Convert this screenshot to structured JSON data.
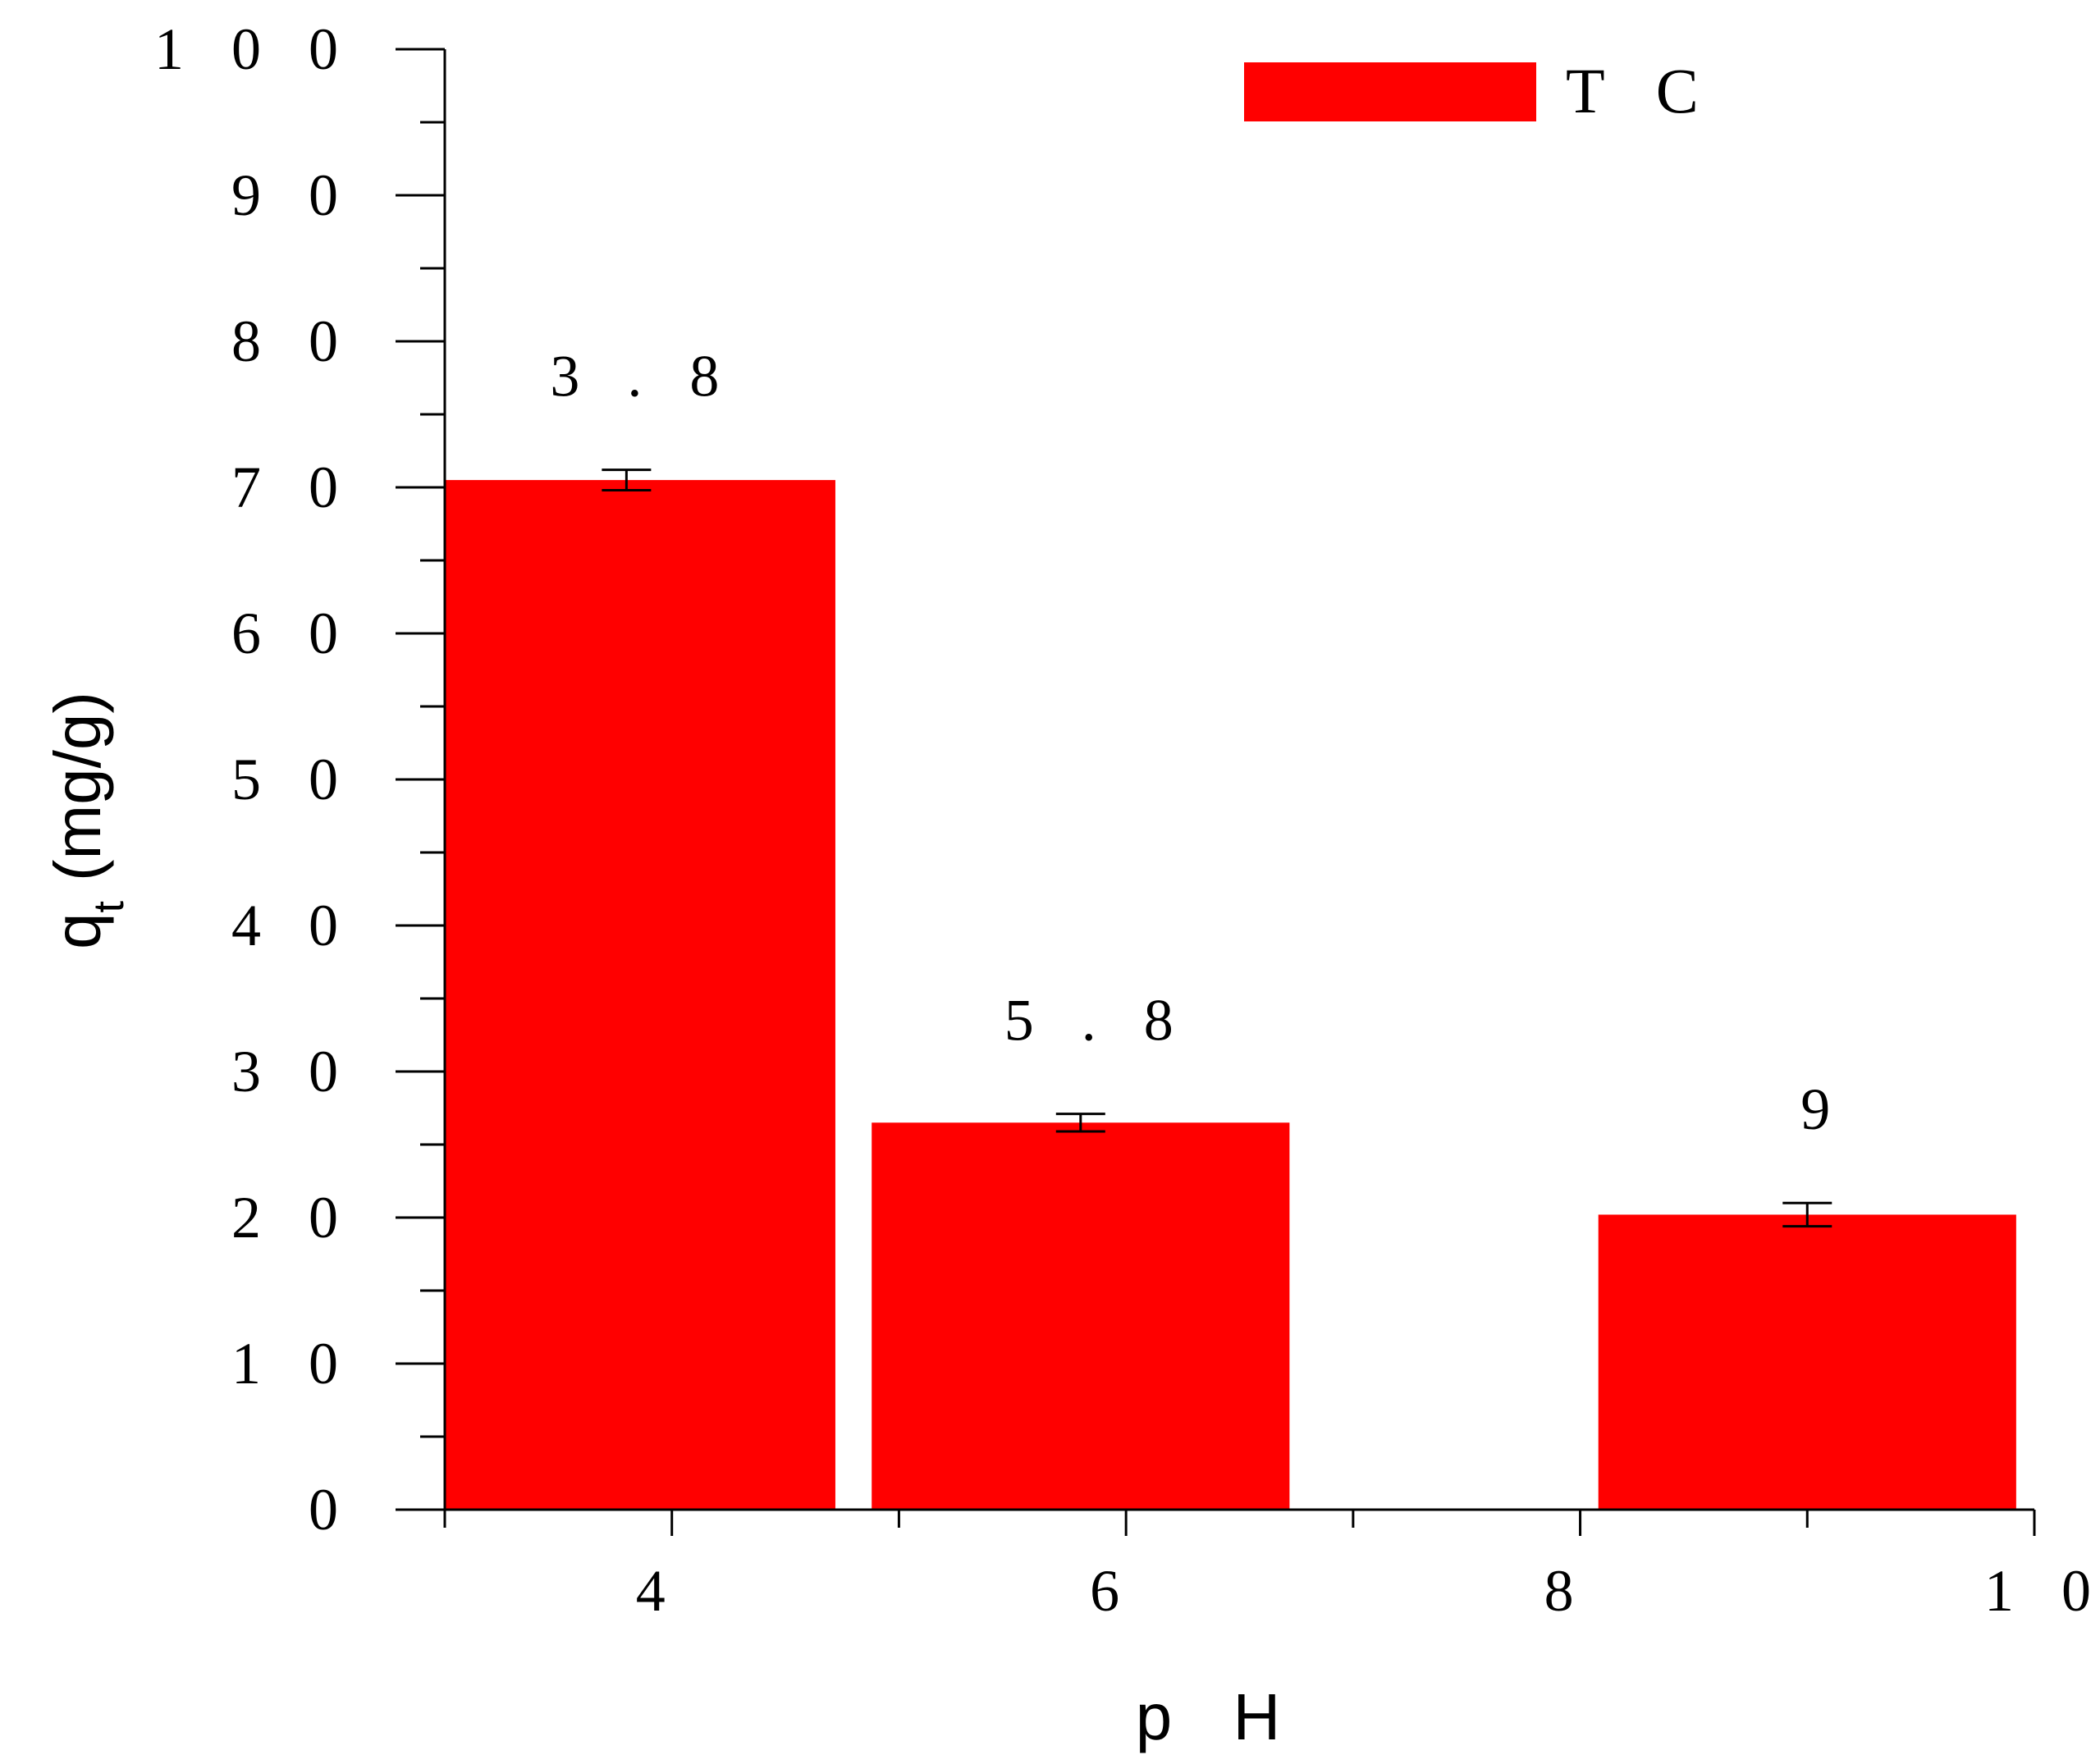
{
  "chart_data": {
    "type": "bar",
    "title": "",
    "xlabel": "p H",
    "ylabel": "(mg/g)",
    "ylabel_main": "q",
    "ylabel_sub": "t",
    "xlim": [
      3,
      10
    ],
    "ylim": [
      0,
      100
    ],
    "x_ticks": [
      4,
      6,
      8,
      10
    ],
    "x_tick_labels": [
      "4",
      "6",
      "8",
      "1 0"
    ],
    "y_ticks": [
      0,
      10,
      20,
      30,
      40,
      50,
      60,
      70,
      80,
      90,
      100
    ],
    "y_tick_labels": [
      "0",
      "1 0",
      "2 0",
      "3 0",
      "4 0",
      "5 0",
      "6 0",
      "7 0",
      "8 0",
      "9 0",
      "1 0 0"
    ],
    "legend": {
      "position": "top-right",
      "label": "T C",
      "color": "#ff0000"
    },
    "series": [
      {
        "name": "T C",
        "color": "#ff0000",
        "bars": [
          {
            "x_start": 3.0,
            "x_end": 4.72,
            "value": 70.5,
            "error": 0.7,
            "error_x": 3.8,
            "label": "3 . 8"
          },
          {
            "x_start": 4.88,
            "x_end": 6.72,
            "value": 26.5,
            "error": 0.6,
            "error_x": 5.8,
            "label": "5 . 8"
          },
          {
            "x_start": 8.08,
            "x_end": 9.92,
            "value": 20.2,
            "error": 0.8,
            "error_x": 9.0,
            "label": "9"
          }
        ]
      }
    ],
    "grid": false
  }
}
